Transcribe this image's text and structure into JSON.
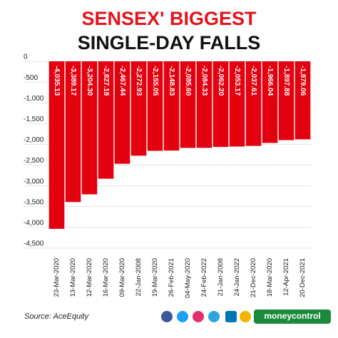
{
  "chart_data": {
    "type": "bar",
    "title": "SENSEX' BIGGEST",
    "subtitle": "SINGLE-DAY FALLS",
    "categories": [
      "23-Mar-2020",
      "13-Mar-2020",
      "12-Mar-2020",
      "16-Mar-2020",
      "09-Mar-2020",
      "22-Jan-2008",
      "19-Mar-2020",
      "26-Feb-2021",
      "04-May-2020",
      "24-Feb-2022",
      "21-Jan-2008",
      "24-Jan-2022",
      "21-Dec-2020",
      "18-Mar-2020",
      "12-Apr-2021",
      "20-Dec-2021"
    ],
    "values": [
      -4035.13,
      -3389.17,
      -3204.3,
      -2827.18,
      -2467.44,
      -2272.93,
      -2155.05,
      -2148.83,
      -2085.6,
      -2084.33,
      -2062.2,
      -2053.17,
      -2037.61,
      -1966.04,
      -1897.88,
      -1879.06
    ],
    "value_labels": [
      "-4,035.13",
      "-3,389.17",
      "-3,204.30",
      "-2,827.18",
      "-2,467.44",
      "-2,272.93",
      "-2,155.05",
      "-2,148.83",
      "-2,085.60",
      "-2,084.33",
      "-2,062.20",
      "-2,053.17",
      "-2,037.61",
      "-1,966.04",
      "-1,897.88",
      "-1,879.06"
    ],
    "color": "#e3000f",
    "ylim": [
      0,
      -4500
    ],
    "yticks": [
      0,
      -500,
      {
        "value": -1000,
        "label": "-1,000"
      },
      {
        "value": -1500,
        "label": "-1,500"
      },
      {
        "value": -2000,
        "label": "-2,000"
      },
      {
        "value": -2500,
        "label": "-2,500"
      },
      {
        "value": -3000,
        "label": "-3,000"
      },
      {
        "value": -3500,
        "label": "-3,500"
      },
      {
        "value": -4000,
        "label": "-4,000"
      },
      {
        "value": -4500,
        "label": "-4,500"
      }
    ],
    "grid": true
  },
  "footer": {
    "source": "Source: AceEquity",
    "brand": "moneycontrol"
  }
}
